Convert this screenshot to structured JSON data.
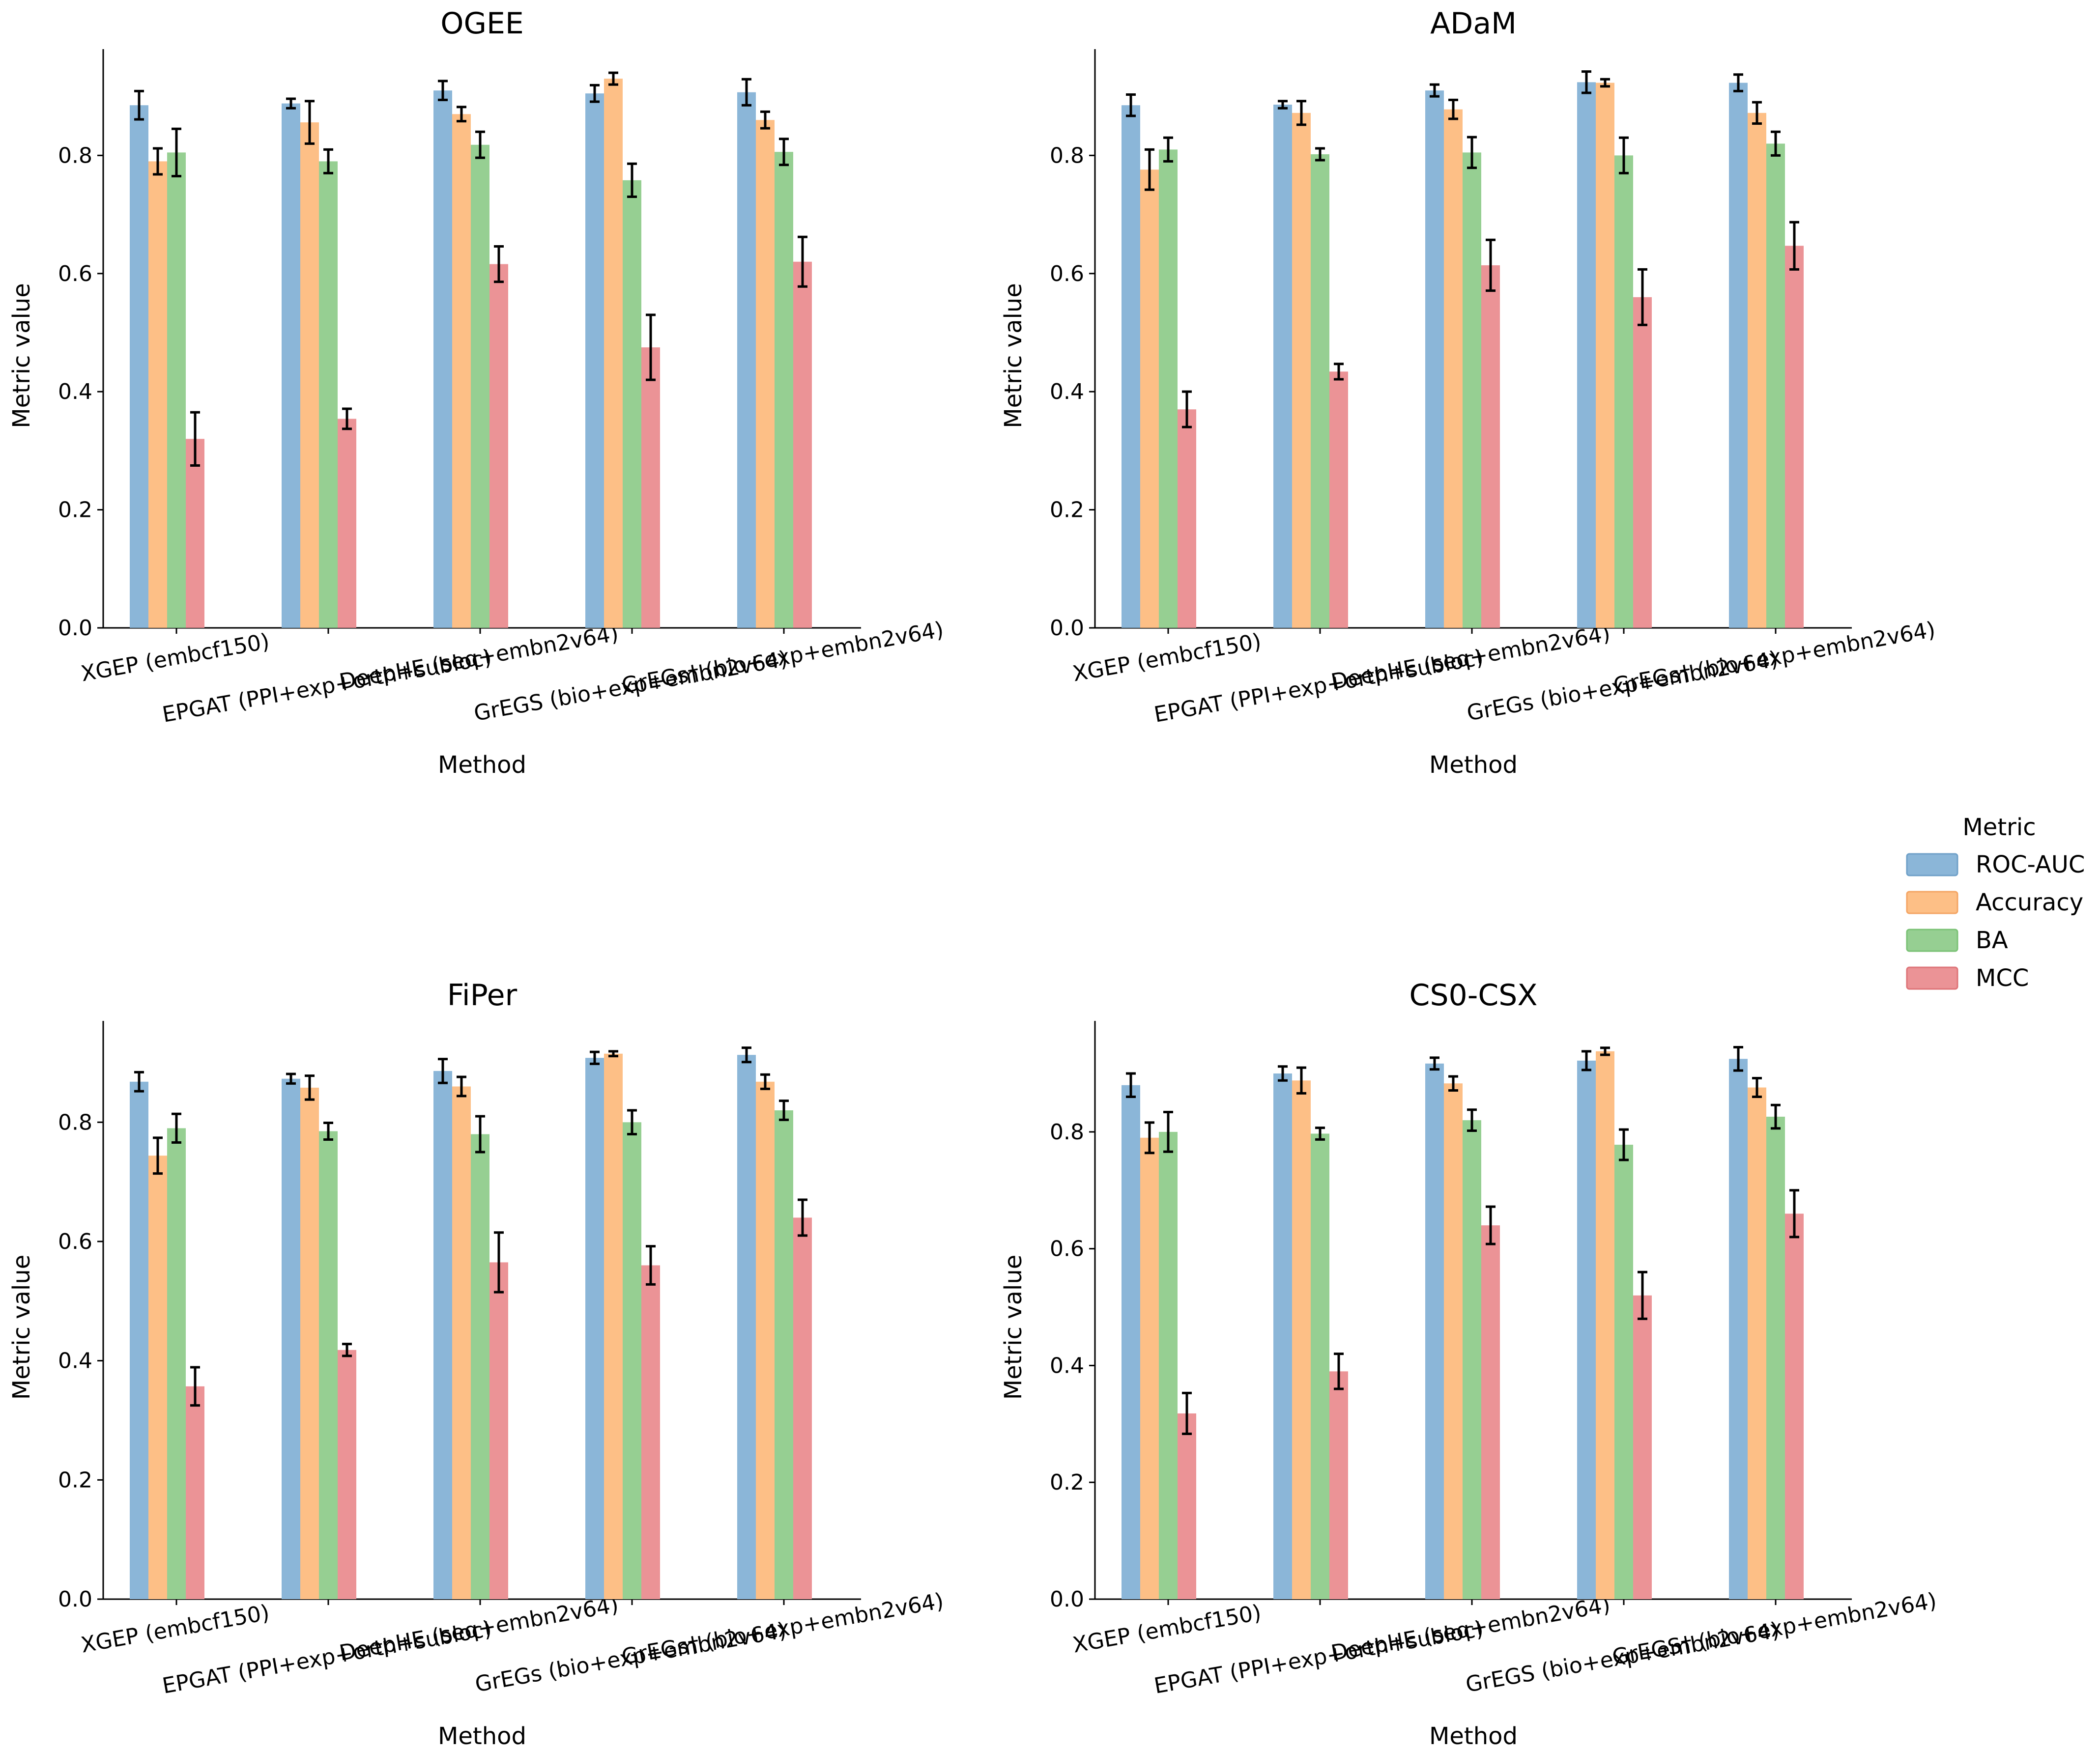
{
  "colors": {
    "ROC-AUC": "#8bb6d8",
    "Accuracy": "#fdbf86",
    "BA": "#96cf92",
    "MCC": "#eb9396"
  },
  "legend": {
    "title": "Metric",
    "entries": [
      "ROC-AUC",
      "Accuracy",
      "BA",
      "MCC"
    ]
  },
  "chart_data": [
    {
      "type": "bar",
      "title": "OGEE",
      "xlabel": "Method",
      "ylabel": "Metric value",
      "ylim": [
        0,
        0.98
      ],
      "yticks": [
        "0.0",
        "0.2",
        "0.4",
        "0.6",
        "0.8"
      ],
      "categories": [
        "XGEP (embcf150)",
        "EPGAT (PPI+exp+orth+subloc)",
        "DeepHE (seq+embn2v64)",
        "GrEGS (bio+exp+embn2v64)",
        "GrEGs† (bio+exp+embn2v64)"
      ],
      "series": [
        {
          "name": "ROC-AUC",
          "values": [
            0.885,
            0.888,
            0.91,
            0.905,
            0.907
          ],
          "errors": [
            0.024,
            0.008,
            0.016,
            0.014,
            0.022
          ]
        },
        {
          "name": "Accuracy",
          "values": [
            0.79,
            0.856,
            0.87,
            0.93,
            0.86
          ],
          "errors": [
            0.022,
            0.036,
            0.012,
            0.01,
            0.014
          ]
        },
        {
          "name": "BA",
          "values": [
            0.805,
            0.79,
            0.818,
            0.758,
            0.806
          ],
          "errors": [
            0.04,
            0.02,
            0.022,
            0.028,
            0.022
          ]
        },
        {
          "name": "MCC",
          "values": [
            0.32,
            0.354,
            0.616,
            0.475,
            0.62
          ],
          "errors": [
            0.045,
            0.017,
            0.03,
            0.055,
            0.042
          ]
        }
      ]
    },
    {
      "type": "bar",
      "title": "ADaM",
      "xlabel": "Method",
      "ylabel": "Metric value",
      "ylim": [
        0,
        0.98
      ],
      "yticks": [
        "0.0",
        "0.2",
        "0.4",
        "0.6",
        "0.8"
      ],
      "categories": [
        "XGEP (embcf150)",
        "EPGAT (PPI+exp+orth+subloc)",
        "DeepHE (seq+embn2v64)",
        "GrEGs (bio+exp+embn2v64)",
        "GrEGs† (bio+exp+embn2v64)"
      ],
      "series": [
        {
          "name": "ROC-AUC",
          "values": [
            0.885,
            0.886,
            0.91,
            0.924,
            0.923
          ],
          "errors": [
            0.018,
            0.006,
            0.01,
            0.018,
            0.014
          ]
        },
        {
          "name": "Accuracy",
          "values": [
            0.776,
            0.872,
            0.878,
            0.923,
            0.872
          ],
          "errors": [
            0.034,
            0.02,
            0.016,
            0.006,
            0.018
          ]
        },
        {
          "name": "BA",
          "values": [
            0.81,
            0.802,
            0.805,
            0.8,
            0.82
          ],
          "errors": [
            0.02,
            0.01,
            0.026,
            0.03,
            0.02
          ]
        },
        {
          "name": "MCC",
          "values": [
            0.37,
            0.434,
            0.614,
            0.56,
            0.647
          ],
          "errors": [
            0.03,
            0.013,
            0.043,
            0.047,
            0.04
          ]
        }
      ]
    },
    {
      "type": "bar",
      "title": "FiPer",
      "xlabel": "Method",
      "ylabel": "Metric value",
      "ylim": [
        0,
        0.97
      ],
      "yticks": [
        "0.0",
        "0.2",
        "0.4",
        "0.6",
        "0.8"
      ],
      "categories": [
        "XGEP (embcf150)",
        "EPGAT (PPI+exp+orth+subloc)",
        "DeepHE (seq+embn2v64)",
        "GrEGs (bio+exp+embn2v64)",
        "GrEGs† (bio+exp+embn2v64)"
      ],
      "series": [
        {
          "name": "ROC-AUC",
          "values": [
            0.868,
            0.873,
            0.886,
            0.908,
            0.913
          ],
          "errors": [
            0.016,
            0.008,
            0.02,
            0.01,
            0.012
          ]
        },
        {
          "name": "Accuracy",
          "values": [
            0.744,
            0.858,
            0.86,
            0.915,
            0.868
          ],
          "errors": [
            0.03,
            0.02,
            0.016,
            0.004,
            0.012
          ]
        },
        {
          "name": "BA",
          "values": [
            0.79,
            0.785,
            0.78,
            0.8,
            0.82
          ],
          "errors": [
            0.024,
            0.014,
            0.03,
            0.02,
            0.016
          ]
        },
        {
          "name": "MCC",
          "values": [
            0.357,
            0.418,
            0.565,
            0.56,
            0.64
          ],
          "errors": [
            0.032,
            0.01,
            0.05,
            0.032,
            0.03
          ]
        }
      ]
    },
    {
      "type": "bar",
      "title": "CS0-CSX",
      "xlabel": "Method",
      "ylabel": "Metric value",
      "ylim": [
        0,
        0.99
      ],
      "yticks": [
        "0.0",
        "0.2",
        "0.4",
        "0.6",
        "0.8"
      ],
      "categories": [
        "XGEP (embcf150)",
        "EPGAT (PPI+exp+orth+subloc)",
        "DeepHE (seq+embn2v64)",
        "GrEGS (bio+exp+embn2v64)",
        "GrEGS† (bio+exp+embn2v64)"
      ],
      "series": [
        {
          "name": "ROC-AUC",
          "values": [
            0.88,
            0.9,
            0.917,
            0.922,
            0.925
          ],
          "errors": [
            0.02,
            0.012,
            0.01,
            0.016,
            0.02
          ]
        },
        {
          "name": "Accuracy",
          "values": [
            0.79,
            0.888,
            0.883,
            0.938,
            0.876
          ],
          "errors": [
            0.026,
            0.022,
            0.012,
            0.006,
            0.016
          ]
        },
        {
          "name": "BA",
          "values": [
            0.8,
            0.797,
            0.82,
            0.778,
            0.826
          ],
          "errors": [
            0.034,
            0.01,
            0.018,
            0.026,
            0.02
          ]
        },
        {
          "name": "MCC",
          "values": [
            0.318,
            0.39,
            0.64,
            0.52,
            0.66
          ],
          "errors": [
            0.035,
            0.03,
            0.032,
            0.04,
            0.04
          ]
        }
      ]
    }
  ]
}
